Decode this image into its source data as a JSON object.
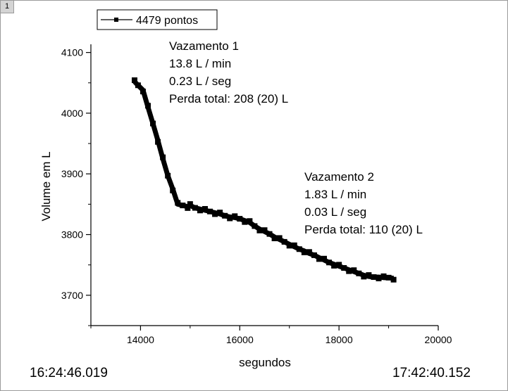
{
  "window": {
    "page_number": "1"
  },
  "footer": {
    "start_time": "16:24:46.019",
    "end_time": "17:42:40.152"
  },
  "annotations": [
    {
      "lines": [
        "Vazamento 1",
        "13.8 L / min",
        "0.23 L / seg",
        "Perda total: 208 (20) L"
      ]
    },
    {
      "lines": [
        "Vazamento 2",
        "1.83 L / min",
        "0.03 L / seg",
        "Perda total: 110 (20) L"
      ]
    }
  ],
  "chart_data": {
    "type": "scatter",
    "title": "",
    "xlabel": "segundos",
    "ylabel": "Volume em L",
    "xlim": [
      13000,
      20000
    ],
    "ylim": [
      3650,
      4110
    ],
    "xticks": [
      14000,
      16000,
      18000,
      20000
    ],
    "yticks": [
      3700,
      3800,
      3900,
      4000,
      4100
    ],
    "legend": {
      "position": "top-left",
      "entries": [
        "4479 pontos"
      ]
    },
    "grid": false,
    "series": [
      {
        "name": "4479 pontos",
        "color": "#000000",
        "marker": "square",
        "x": [
          13880,
          13950,
          14050,
          14150,
          14250,
          14350,
          14450,
          14550,
          14650,
          14750,
          14850,
          14950,
          15000,
          15100,
          15200,
          15300,
          15400,
          15500,
          15600,
          15700,
          15800,
          15900,
          16000,
          16100,
          16200,
          16300,
          16400,
          16500,
          16600,
          16700,
          16800,
          16900,
          17000,
          17100,
          17200,
          17300,
          17400,
          17500,
          17600,
          17700,
          17800,
          17900,
          18000,
          18100,
          18200,
          18300,
          18400,
          18500,
          18600,
          18700,
          18800,
          18900,
          19000,
          19100
        ],
        "y": [
          4052,
          4046,
          4038,
          4010,
          3983,
          3955,
          3925,
          3897,
          3875,
          3850,
          3848,
          3846,
          3848,
          3844,
          3842,
          3840,
          3838,
          3836,
          3834,
          3831,
          3829,
          3828,
          3826,
          3823,
          3820,
          3814,
          3809,
          3805,
          3801,
          3796,
          3792,
          3788,
          3784,
          3780,
          3776,
          3773,
          3769,
          3766,
          3762,
          3758,
          3754,
          3751,
          3748,
          3745,
          3742,
          3739,
          3736,
          3733,
          3731,
          3730,
          3730,
          3729,
          3729,
          3728
        ]
      }
    ]
  }
}
